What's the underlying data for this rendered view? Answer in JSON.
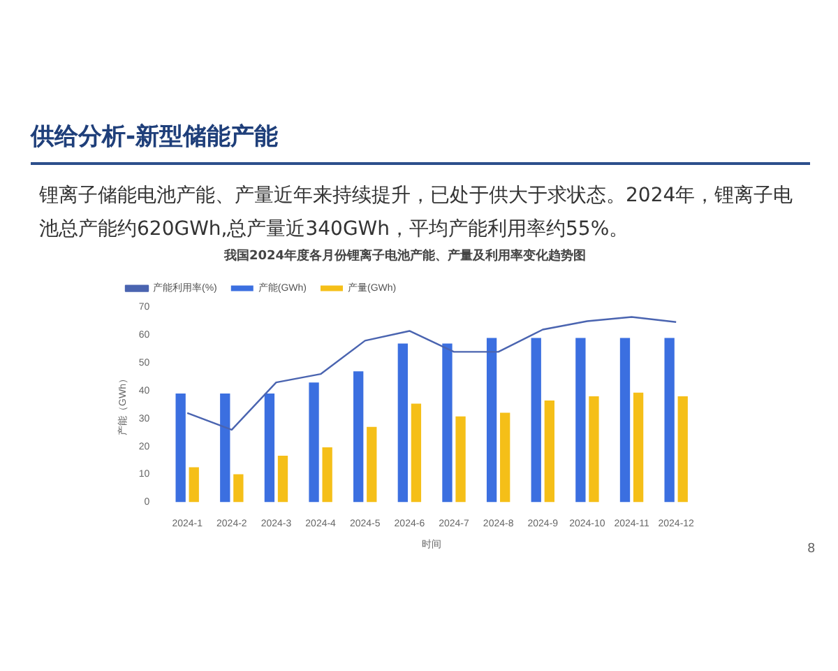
{
  "chart_data": {
    "type": "bar",
    "title": "我国2024年度各月份锂离子电池产能、产量及利用率变化趋势图",
    "xlabel": "时间",
    "ylabel": "产能（GWh）",
    "annotations": [
      "供给分析-新型储能产能",
      "锂离子储能电池产能、产量近年来持续提升，已处于供大于求状态。2024年，锂离子电池总产能约620GWh,总产量近340GWh，平均产能利用率约55%。",
      "8"
    ],
    "categories": [
      "2024-1",
      "2024-2",
      "2024-3",
      "2024-4",
      "2024-5",
      "2024-6",
      "2024-7",
      "2024-8",
      "2024-9",
      "2024-10",
      "2024-11",
      "2024-12"
    ],
    "series": [
      {
        "name": "产能(GWh)",
        "color": "#3b6fe0",
        "values": [
          39,
          39,
          39,
          43,
          47,
          57,
          57,
          59,
          59,
          59,
          59,
          59
        ]
      },
      {
        "name": "产量(GWh)",
        "color": "#f5bf18",
        "values": [
          12.5,
          10,
          16.7,
          19.7,
          27,
          35.4,
          30.8,
          32.1,
          36.5,
          38,
          39.3,
          38
        ]
      },
      {
        "name": "产能利用率(%)",
        "type": "line",
        "color": "#4a64b0",
        "values": [
          32,
          26,
          43,
          46,
          58,
          61.5,
          54,
          54,
          62,
          65,
          66.5,
          64.7
        ]
      }
    ],
    "ylim": [
      0,
      70
    ],
    "yticks": [
      0,
      10,
      20,
      30,
      40,
      50,
      60,
      70
    ],
    "grid": false,
    "legend": "top left",
    "marker": "none"
  }
}
